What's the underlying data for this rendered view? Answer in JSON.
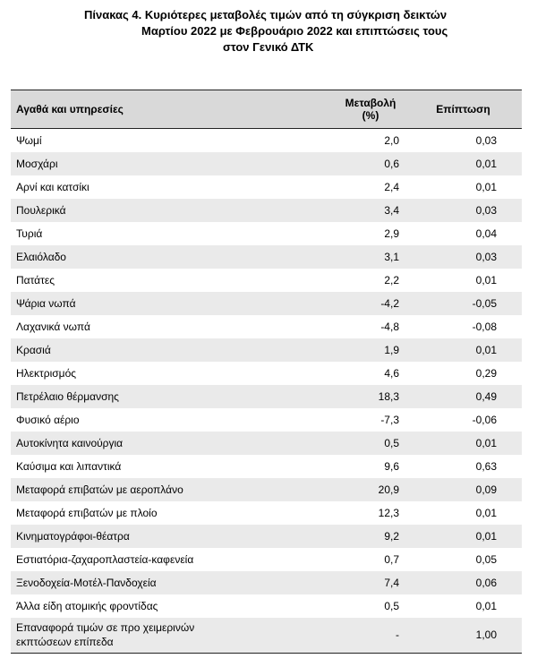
{
  "caption": {
    "line1": "Πίνακας  4. Κυριότερες μεταβολές τιμών από τη σύγκριση δεικτών",
    "line2": "Μαρτίου 2022 με Φεβρουάριο 2022 και επιπτώσεις τους",
    "line3": "στον Γενικό ΔΤΚ"
  },
  "table": {
    "headers": {
      "item": "Αγαθά και υπηρεσίες",
      "change_line1": "Μεταβολή",
      "change_line2": "(%)",
      "impact": "Επίπτωση"
    },
    "rows": [
      {
        "name": "Ψωμί",
        "change": "2,0",
        "impact": "0,03"
      },
      {
        "name": "Μοσχάρι",
        "change": "0,6",
        "impact": "0,01"
      },
      {
        "name": "Αρνί και κατσίκι",
        "change": "2,4",
        "impact": "0,01"
      },
      {
        "name": "Πουλερικά",
        "change": "3,4",
        "impact": "0,03"
      },
      {
        "name": "Τυριά",
        "change": "2,9",
        "impact": "0,04"
      },
      {
        "name": "Ελαιόλαδο",
        "change": "3,1",
        "impact": "0,03"
      },
      {
        "name": "Πατάτες",
        "change": "2,2",
        "impact": "0,01"
      },
      {
        "name": "Ψάρια νωπά",
        "change": "-4,2",
        "impact": "-0,05"
      },
      {
        "name": "Λαχανικά νωπά",
        "change": "-4,8",
        "impact": "-0,08"
      },
      {
        "name": "Κρασιά",
        "change": "1,9",
        "impact": "0,01"
      },
      {
        "name": "Ηλεκτρισμός",
        "change": "4,6",
        "impact": "0,29"
      },
      {
        "name": "Πετρέλαιο θέρμανσης",
        "change": "18,3",
        "impact": "0,49"
      },
      {
        "name": "Φυσικό αέριο",
        "change": "-7,3",
        "impact": "-0,06"
      },
      {
        "name": "Αυτοκίνητα καινούργια",
        "change": "0,5",
        "impact": "0,01"
      },
      {
        "name": "Καύσιμα και λιπαντικά",
        "change": "9,6",
        "impact": "0,63"
      },
      {
        "name": "Μεταφορά επιβατών με αεροπλάνο",
        "change": "20,9",
        "impact": "0,09"
      },
      {
        "name": "Μεταφορά επιβατών με πλοίο",
        "change": "12,3",
        "impact": "0,01"
      },
      {
        "name": "Κινηματογράφοι-θέατρα",
        "change": "9,2",
        "impact": "0,01"
      },
      {
        "name": "Εστιατόρια-ζαχαροπλαστεία-καφενεία",
        "change": "0,7",
        "impact": "0,05"
      },
      {
        "name": "Ξενοδοχεία-Μοτέλ-Πανδοχεία",
        "change": "7,4",
        "impact": "0,06"
      },
      {
        "name": "Άλλα είδη ατομικής φροντίδας",
        "change": "0,5",
        "impact": "0,01"
      },
      {
        "name_line1": "Επαναφορά τιμών σε προ χειμερινών",
        "name_line2": "εκπτώσεων επίπεδα",
        "change": "-",
        "impact": "1,00"
      }
    ]
  }
}
